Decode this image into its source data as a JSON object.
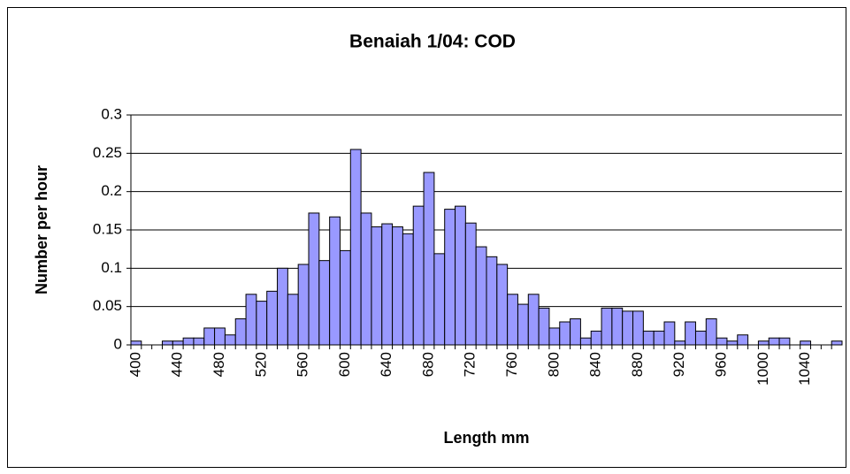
{
  "chart_data": {
    "type": "bar",
    "title": "Benaiah 1/04: COD",
    "x_label": "Length mm",
    "y_label": "Number per hour",
    "categories": [
      400,
      null,
      null,
      null,
      440,
      null,
      null,
      null,
      480,
      null,
      null,
      null,
      520,
      null,
      null,
      null,
      560,
      null,
      null,
      null,
      600,
      null,
      null,
      null,
      640,
      null,
      null,
      null,
      680,
      null,
      null,
      null,
      720,
      null,
      null,
      null,
      760,
      null,
      null,
      null,
      800,
      null,
      null,
      null,
      840,
      null,
      null,
      null,
      880,
      null,
      null,
      null,
      920,
      null,
      null,
      null,
      960,
      null,
      null,
      null,
      1000,
      null,
      null,
      null,
      1040,
      null,
      null,
      null
    ],
    "values": [
      0.005,
      0,
      0,
      0.005,
      0.005,
      0.009,
      0.009,
      0.022,
      0.022,
      0.013,
      0.034,
      0.066,
      0.057,
      0.07,
      0.1,
      0.066,
      0.105,
      0.172,
      0.11,
      0.167,
      0.123,
      0.255,
      0.172,
      0.154,
      0.158,
      0.154,
      0.145,
      0.181,
      0.225,
      0.119,
      0.177,
      0.181,
      0.159,
      0.128,
      0.115,
      0.105,
      0.066,
      0.053,
      0.066,
      0.048,
      0.022,
      0.03,
      0.034,
      0.009,
      0.018,
      0.048,
      0.048,
      0.044,
      0.044,
      0.018,
      0.018,
      0.03,
      0.005,
      0.03,
      0.018,
      0.034,
      0.009,
      0.005,
      0.013,
      0,
      0.005,
      0.009,
      0.009,
      0,
      0.005,
      0,
      0,
      0.005
    ],
    "color": "#9999ff",
    "ylim": [
      0,
      0.3
    ],
    "yticks": [
      0,
      0.05,
      0.1,
      0.15,
      0.2,
      0.25,
      0.3
    ],
    "grid": true
  }
}
